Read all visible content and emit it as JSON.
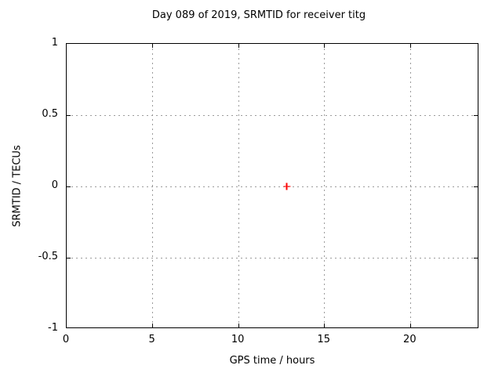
{
  "title": "Day 089 of 2019, SRMTID for receiver titg",
  "chart_data": {
    "type": "scatter",
    "title": "Day 089 of 2019, SRMTID for receiver titg",
    "xlabel": "GPS time / hours",
    "ylabel": "SRMTID / TECUs",
    "xlim": [
      0,
      24
    ],
    "ylim": [
      -1,
      1
    ],
    "xticks": [
      0,
      5,
      10,
      15,
      20
    ],
    "yticks": [
      -1,
      -0.5,
      0,
      0.5,
      1
    ],
    "grid": true,
    "legend": "none",
    "series": [
      {
        "name": "SRMTID",
        "marker": "plus",
        "color": "#ff0000",
        "points": [
          {
            "x": 12.8,
            "y": 0
          }
        ]
      }
    ]
  },
  "colors": {
    "background": "#ffffff",
    "border": "#000000",
    "grid": "#9b9b9b",
    "marker": "#ff0000",
    "text": "#000000"
  }
}
